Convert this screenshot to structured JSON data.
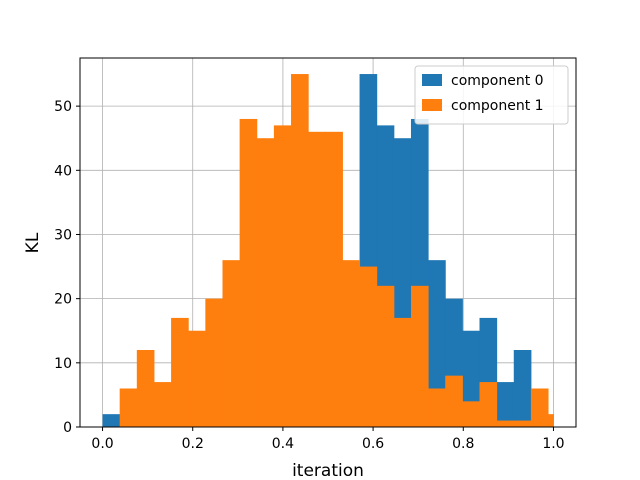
{
  "chart_data": {
    "type": "histogram",
    "title": "",
    "xlabel": "iteration",
    "ylabel": "KL",
    "xlim": [
      -0.05,
      1.05
    ],
    "ylim": [
      0,
      57.5
    ],
    "xticks": [
      "0.0",
      "0.2",
      "0.4",
      "0.6",
      "0.8",
      "1.0"
    ],
    "yticks": [
      "0",
      "10",
      "20",
      "30",
      "40",
      "50"
    ],
    "grid": true,
    "legend_position": "top-right",
    "bin_edges": [
      0.0,
      0.038,
      0.076,
      0.114,
      0.152,
      0.19,
      0.228,
      0.266,
      0.304,
      0.342,
      0.38,
      0.418,
      0.456,
      0.494,
      0.532,
      0.57,
      0.608,
      0.646,
      0.684,
      0.722,
      0.76,
      0.798,
      0.836,
      0.874,
      0.912,
      0.95,
      0.988
    ],
    "series": [
      {
        "name": "component 0",
        "color": "#1f77b4",
        "values": [
          2,
          0,
          0,
          0,
          0,
          0,
          0,
          0,
          0,
          0,
          0,
          0,
          0,
          0,
          0,
          55,
          47,
          45,
          48,
          26,
          20,
          15,
          17,
          7,
          12,
          0,
          0
        ]
      },
      {
        "name": "component 1",
        "color": "#ff7f0e",
        "values": [
          0,
          6,
          12,
          7,
          17,
          15,
          20,
          26,
          48,
          45,
          47,
          55,
          46,
          46,
          26,
          25,
          22,
          17,
          22,
          6,
          8,
          4,
          7,
          1,
          1,
          6,
          2
        ]
      }
    ]
  }
}
